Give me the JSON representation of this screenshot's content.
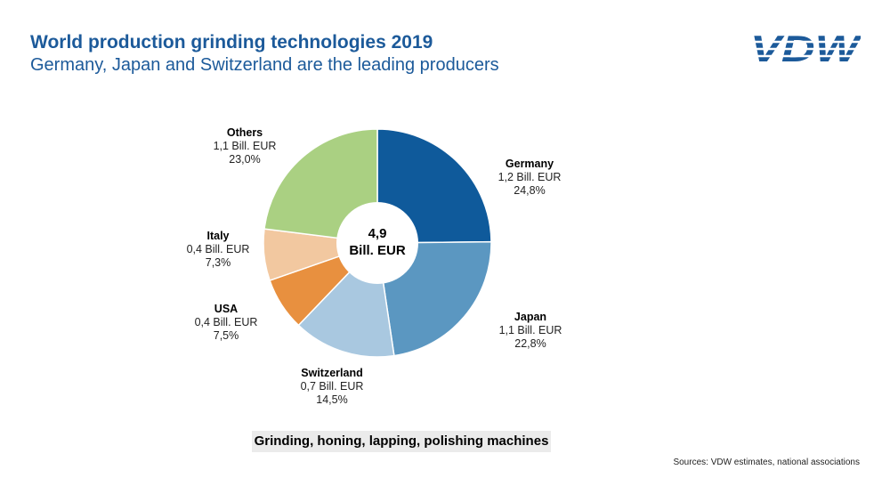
{
  "header": {
    "title": "World production grinding technologies 2019",
    "subtitle": "Germany, Japan and Switzerland are the leading producers",
    "logo_text": "VDW"
  },
  "chart_data": {
    "type": "pie",
    "center": {
      "value": "4,9",
      "unit": "Bill. EUR"
    },
    "slices": [
      {
        "name": "Germany",
        "amount": "1,2 Bill. EUR",
        "percent_label": "24,8%",
        "percent": 24.8,
        "color": "#0f5a9b"
      },
      {
        "name": "Japan",
        "amount": "1,1 Bill. EUR",
        "percent_label": "22,8%",
        "percent": 22.8,
        "color": "#5b97c1"
      },
      {
        "name": "Switzerland",
        "amount": "0,7 Bill. EUR",
        "percent_label": "14,5%",
        "percent": 14.5,
        "color": "#a9c8e0"
      },
      {
        "name": "USA",
        "amount": "0,4 Bill. EUR",
        "percent_label": "7,5%",
        "percent": 7.5,
        "color": "#e8903f"
      },
      {
        "name": "Italy",
        "amount": "0,4 Bill. EUR",
        "percent_label": "7,3%",
        "percent": 7.3,
        "color": "#f2c8a0"
      },
      {
        "name": "Others",
        "amount": "1,1 Bill. EUR",
        "percent_label": "23,0%",
        "percent": 23.0,
        "color": "#aad082"
      }
    ]
  },
  "caption": "Grinding, honing, lapping, polishing machines",
  "source": "Sources: VDW estimates, national associations"
}
